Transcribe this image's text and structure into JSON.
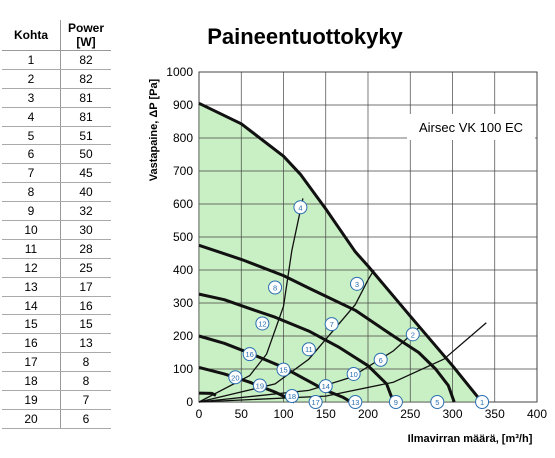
{
  "table": {
    "headers": [
      "Kohta",
      "Power [W]"
    ],
    "rows": [
      [
        "1",
        "82"
      ],
      [
        "2",
        "82"
      ],
      [
        "3",
        "81"
      ],
      [
        "4",
        "81"
      ],
      [
        "5",
        "51"
      ],
      [
        "6",
        "50"
      ],
      [
        "7",
        "45"
      ],
      [
        "8",
        "40"
      ],
      [
        "9",
        "32"
      ],
      [
        "10",
        "30"
      ],
      [
        "11",
        "28"
      ],
      [
        "12",
        "25"
      ],
      [
        "13",
        "17"
      ],
      [
        "14",
        "16"
      ],
      [
        "15",
        "15"
      ],
      [
        "16",
        "13"
      ],
      [
        "17",
        "8"
      ],
      [
        "18",
        "8"
      ],
      [
        "19",
        "7"
      ],
      [
        "20",
        "6"
      ]
    ]
  },
  "chart_data": {
    "type": "line",
    "title": "Paineentuottokyky",
    "model_label": "Airsec VK 100 EC",
    "xlabel": "Ilmavirran määrä, [m³/h]",
    "ylabel": "Vastapaine, ΔP [Pa]",
    "xlim": [
      0,
      400
    ],
    "ylim": [
      0,
      1000
    ],
    "xticks": [
      0,
      50,
      100,
      150,
      200,
      250,
      300,
      350,
      400
    ],
    "yticks": [
      0,
      100,
      200,
      300,
      400,
      500,
      600,
      700,
      800,
      900,
      1000
    ],
    "grid": true,
    "fill_color": "#c9efc4",
    "fan_curves": [
      [
        [
          0,
          905
        ],
        [
          50,
          843
        ],
        [
          100,
          745
        ],
        [
          120,
          690
        ],
        [
          150,
          585
        ],
        [
          185,
          455
        ],
        [
          200,
          412
        ],
        [
          250,
          260
        ],
        [
          300,
          110
        ],
        [
          330,
          15
        ],
        [
          335,
          0
        ]
      ],
      [
        [
          0,
          475
        ],
        [
          50,
          432
        ],
        [
          100,
          383
        ],
        [
          130,
          345
        ],
        [
          185,
          278
        ],
        [
          230,
          200
        ],
        [
          260,
          150
        ],
        [
          280,
          100
        ],
        [
          295,
          50
        ],
        [
          302,
          0
        ]
      ],
      [
        [
          0,
          327
        ],
        [
          30,
          310
        ],
        [
          60,
          283
        ],
        [
          90,
          257
        ],
        [
          130,
          215
        ],
        [
          165,
          167
        ],
        [
          200,
          110
        ],
        [
          222,
          55
        ],
        [
          230,
          0
        ]
      ],
      [
        [
          0,
          200
        ],
        [
          30,
          178
        ],
        [
          60,
          148
        ],
        [
          100,
          105
        ],
        [
          125,
          70
        ],
        [
          150,
          35
        ],
        [
          170,
          15
        ],
        [
          180,
          0
        ]
      ],
      [
        [
          0,
          105
        ],
        [
          30,
          85
        ],
        [
          60,
          60
        ],
        [
          90,
          30
        ],
        [
          100,
          18
        ],
        [
          113,
          0
        ]
      ],
      [
        [
          0,
          27
        ],
        [
          15,
          26
        ],
        [
          20,
          20
        ]
      ]
    ],
    "system_curves": [
      [
        [
          0,
          0
        ],
        [
          60,
          80
        ],
        [
          80,
          145
        ],
        [
          100,
          290
        ],
        [
          110,
          460
        ],
        [
          123,
          617
        ]
      ],
      [
        [
          0,
          0
        ],
        [
          90,
          55
        ],
        [
          130,
          130
        ],
        [
          160,
          220
        ],
        [
          185,
          295
        ],
        [
          200,
          370
        ],
        [
          207,
          400
        ]
      ],
      [
        [
          0,
          0
        ],
        [
          130,
          35
        ],
        [
          180,
          75
        ],
        [
          230,
          155
        ],
        [
          260,
          225
        ]
      ],
      [
        [
          0,
          0
        ],
        [
          150,
          18
        ],
        [
          230,
          60
        ],
        [
          290,
          130
        ],
        [
          340,
          240
        ]
      ]
    ],
    "points": [
      {
        "id": "1",
        "x": 335,
        "y": 0
      },
      {
        "id": "2",
        "x": 253,
        "y": 205
      },
      {
        "id": "3",
        "x": 187,
        "y": 358
      },
      {
        "id": "4",
        "x": 120,
        "y": 590
      },
      {
        "id": "5",
        "x": 282,
        "y": 0
      },
      {
        "id": "6",
        "x": 215,
        "y": 128
      },
      {
        "id": "7",
        "x": 157,
        "y": 236
      },
      {
        "id": "8",
        "x": 90,
        "y": 347
      },
      {
        "id": "9",
        "x": 233,
        "y": 0
      },
      {
        "id": "10",
        "x": 183,
        "y": 85
      },
      {
        "id": "11",
        "x": 130,
        "y": 160
      },
      {
        "id": "12",
        "x": 75,
        "y": 238
      },
      {
        "id": "13",
        "x": 185,
        "y": 0
      },
      {
        "id": "14",
        "x": 150,
        "y": 48
      },
      {
        "id": "15",
        "x": 100,
        "y": 98
      },
      {
        "id": "16",
        "x": 60,
        "y": 145
      },
      {
        "id": "17",
        "x": 138,
        "y": 0
      },
      {
        "id": "18",
        "x": 110,
        "y": 18
      },
      {
        "id": "19",
        "x": 72,
        "y": 50
      },
      {
        "id": "20",
        "x": 43,
        "y": 75
      }
    ]
  }
}
